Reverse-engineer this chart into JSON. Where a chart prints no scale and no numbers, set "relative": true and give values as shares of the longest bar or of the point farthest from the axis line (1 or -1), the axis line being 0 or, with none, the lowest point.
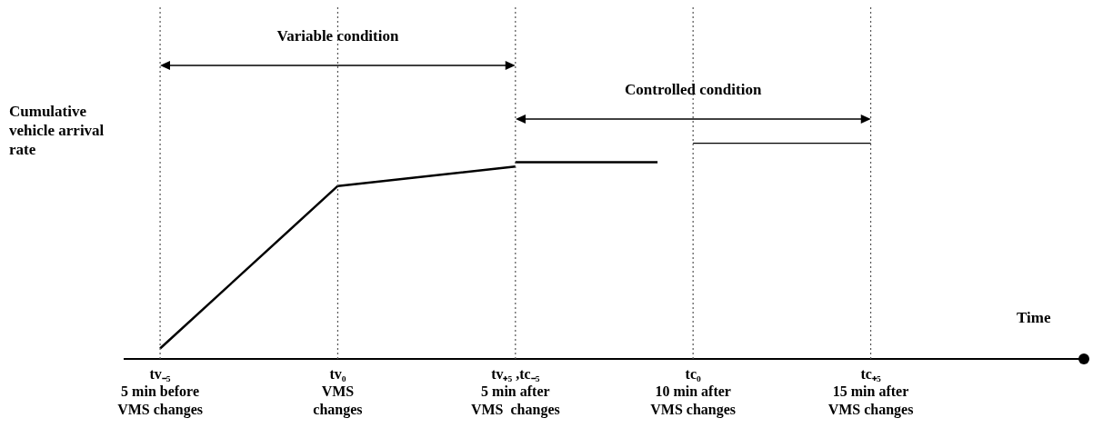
{
  "chart_data": {
    "type": "line",
    "relative": true,
    "xlabel": "Time",
    "ylabel": "Cumulative vehicle arrival rate",
    "categories": [
      null,
      "tv₋₅\n5 min before\nVMS changes",
      null,
      null,
      null,
      null,
      "tv₀\nVMS\nchanges",
      null,
      null,
      null,
      null,
      "tv₊₅ ,tc₋₅\n5 min after\nVMS  changes",
      null,
      null,
      null,
      null,
      "tc₀\n10 min after\nVMS changes",
      null,
      null,
      null,
      null,
      "tc₊₅\n15 min after\nVMS changes",
      null,
      null,
      null,
      null,
      null,
      null
    ],
    "series": [
      {
        "color": "#000000",
        "values": [
          null,
          0.05,
          null,
          null,
          null,
          null,
          0.8,
          null,
          null,
          null,
          null,
          0.89,
          null,
          null,
          null,
          null,
          null,
          null,
          null,
          null,
          null,
          null,
          null,
          null,
          null,
          null,
          null,
          null
        ]
      },
      {
        "color": "#000000",
        "values": [
          null,
          null,
          null,
          null,
          null,
          null,
          null,
          null,
          null,
          null,
          null,
          0.91,
          0.91,
          0.91,
          0.91,
          0.91,
          null,
          null,
          null,
          null,
          null,
          null,
          null,
          null,
          null,
          null,
          null,
          null
        ]
      },
      {
        "color": "#000000",
        "values": [
          null,
          null,
          null,
          null,
          null,
          null,
          null,
          null,
          null,
          null,
          null,
          null,
          null,
          null,
          null,
          null,
          1.0,
          1.0,
          1.0,
          1.0,
          1.0,
          1.0,
          null,
          null,
          null,
          null,
          null,
          null
        ]
      }
    ],
    "ref_lines": [
      {
        "axis": "x",
        "value": "tv₋₅\n5 min before\nVMS changes",
        "color": "#555555",
        "line_style": "dotted"
      },
      {
        "axis": "x",
        "value": "tv₀\nVMS\nchanges",
        "color": "#555555",
        "line_style": "dotted"
      },
      {
        "axis": "x",
        "value": "tv₊₅ ,tc₋₅\n5 min after\nVMS  changes",
        "color": "#555555",
        "line_style": "dotted"
      },
      {
        "axis": "x",
        "value": "tc₀\n10 min after\nVMS changes",
        "color": "#555555",
        "line_style": "dotted"
      },
      {
        "axis": "x",
        "value": "tc₊₅\n15 min after\nVMS changes",
        "color": "#555555",
        "line_style": "dotted"
      }
    ],
    "annotations": [
      "Variable condition",
      "Controlled condition"
    ],
    "legend": false,
    "grid": false,
    "marker": "none",
    "line_style": "solid",
    "tick_labels": "x"
  }
}
